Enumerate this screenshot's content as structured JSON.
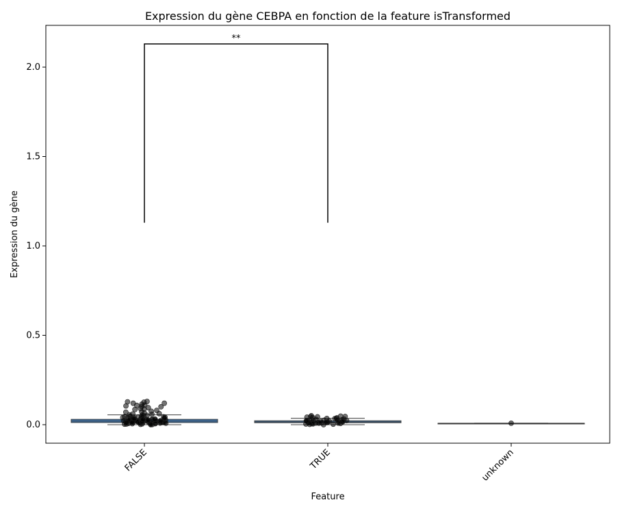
{
  "chart_data": {
    "type": "box",
    "title": "Expression du gène CEBPA en fonction de la feature isTransformed",
    "xlabel": "Feature",
    "ylabel": "Expression du gène",
    "categories": [
      "FALSE",
      "TRUE",
      "unknown"
    ],
    "y_ticks": [
      0.0,
      0.5,
      1.0,
      1.5,
      2.0
    ],
    "y_tick_labels": [
      "0.0",
      "0.5",
      "1.0",
      "1.5",
      "2.0"
    ],
    "ylim": [
      -0.105,
      2.23
    ],
    "grid": false,
    "boxes": [
      {
        "category": "FALSE",
        "whisker_low": 0.0,
        "q1": 0.012,
        "median": 0.02,
        "q3": 0.03,
        "whisker_high": 0.055
      },
      {
        "category": "TRUE",
        "whisker_low": 0.0,
        "q1": 0.011,
        "median": 0.016,
        "q3": 0.022,
        "whisker_high": 0.036
      },
      {
        "category": "unknown",
        "whisker_low": 0.008,
        "q1": 0.008,
        "median": 0.008,
        "q3": 0.008,
        "whisker_high": 0.008
      }
    ],
    "points": {
      "FALSE": [
        0.126,
        0.13,
        0.128,
        0.12,
        0.115,
        0.11,
        0.105,
        0.1,
        0.095,
        0.09,
        0.085,
        0.08,
        0.075,
        0.07,
        0.065,
        0.06,
        0.058,
        0.055,
        0.052,
        0.05,
        0.048,
        0.046,
        0.044,
        0.042,
        0.04,
        0.038,
        0.036,
        0.034,
        0.032,
        0.03,
        0.029,
        0.028,
        0.027,
        0.026,
        0.025,
        0.024,
        0.023,
        0.022,
        0.021,
        0.02,
        0.019,
        0.018,
        0.017,
        0.016,
        0.015,
        0.014,
        0.013,
        0.012,
        0.011,
        0.01,
        0.009,
        0.008,
        0.007,
        0.006,
        0.005,
        0.004,
        0.003,
        0.002,
        0.001,
        0.0,
        0.12,
        0.108,
        0.102,
        0.088,
        0.072,
        0.062,
        0.054,
        0.047,
        0.041,
        0.035,
        0.031,
        0.027,
        0.024,
        0.021,
        0.018,
        0.015,
        0.012,
        0.009,
        0.006,
        0.003,
        0.025,
        0.022,
        0.019,
        0.016,
        0.013,
        0.01,
        0.028,
        0.031,
        0.034,
        0.037,
        0.04,
        0.043,
        0.017,
        0.014,
        0.011,
        0.008,
        0.02,
        0.023,
        0.026,
        0.029
      ],
      "TRUE": [
        0.05,
        0.048,
        0.046,
        0.044,
        0.042,
        0.04,
        0.038,
        0.036,
        0.034,
        0.032,
        0.03,
        0.028,
        0.026,
        0.024,
        0.022,
        0.02,
        0.019,
        0.018,
        0.017,
        0.016,
        0.015,
        0.014,
        0.013,
        0.012,
        0.011,
        0.01,
        0.009,
        0.008,
        0.007,
        0.006,
        0.005,
        0.004,
        0.003,
        0.002,
        0.0,
        0.045,
        0.035,
        0.025,
        0.021,
        0.015,
        0.012,
        0.009,
        0.018,
        0.023,
        0.027
      ],
      "unknown": [
        0.008
      ]
    },
    "annotations": [
      {
        "type": "significance",
        "from": "FALSE",
        "to": "TRUE",
        "y_bottom": 1.13,
        "y_top": 2.13,
        "text": "**"
      }
    ]
  }
}
